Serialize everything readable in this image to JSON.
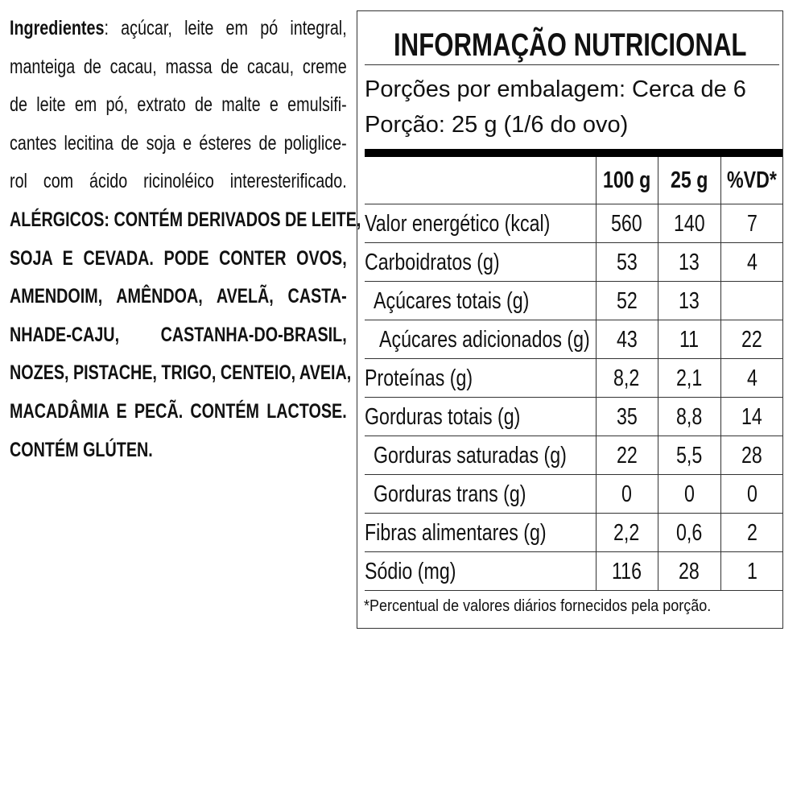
{
  "ingredients": {
    "label": "Ingredientes",
    "lines": [
      "açúcar, leite em pó integral,",
      "manteiga de cacau, massa de cacau, creme",
      "de leite em pó, extrato de malte e emulsifi-",
      "cantes lecitina de soja e ésteres de poliglice-",
      "rol com ácido ricinoléico interesterificado."
    ],
    "allergen_lines": [
      "ALÉRGICOS: CONTÉM DERIVADOS DE LEITE,",
      "SOJA E CEVADA. PODE CONTER OVOS,",
      "AMENDOIM, AMÊNDOA, AVELÃ, CASTA-",
      "NHADE-CAJU, CASTANHA-DO-BRASIL,",
      "NOZES, PISTACHE, TRIGO, CENTEIO, AVEIA,",
      "MACADÂMIA E PECÃ. CONTÉM LACTOSE.",
      "CONTÉM GLÚTEN."
    ]
  },
  "nutrition": {
    "title": "INFORMAÇÃO NUTRICIONAL",
    "servings_per_package": "Porções por embalagem: Cerca de 6",
    "serving_size": "Porção: 25 g (1/6 do ovo)",
    "columns": [
      "",
      "100 g",
      "25 g",
      "%VD*"
    ],
    "rows": [
      {
        "name": "Valor energético (kcal)",
        "v100": "560",
        "v25": "140",
        "vd": "7"
      },
      {
        "name": "Carboidratos (g)",
        "v100": "53",
        "v25": "13",
        "vd": "4"
      },
      {
        "name": "Açúcares totais (g)",
        "v100": "52",
        "v25": "13",
        "vd": ""
      },
      {
        "name": "Açúcares adicionados (g)",
        "v100": "43",
        "v25": "11",
        "vd": "22"
      },
      {
        "name": "Proteínas (g)",
        "v100": "8,2",
        "v25": "2,1",
        "vd": "4"
      },
      {
        "name": "Gorduras totais (g)",
        "v100": "35",
        "v25": "8,8",
        "vd": "14"
      },
      {
        "name": "Gorduras saturadas (g)",
        "v100": "22",
        "v25": "5,5",
        "vd": "28"
      },
      {
        "name": "Gorduras trans (g)",
        "v100": "0",
        "v25": "0",
        "vd": "0"
      },
      {
        "name": "Fibras alimentares (g)",
        "v100": "2,2",
        "v25": "0,6",
        "vd": "2"
      },
      {
        "name": "Sódio (mg)",
        "v100": "116",
        "v25": "28",
        "vd": "1"
      }
    ],
    "footnote": "*Percentual de valores diários fornecidos pela porção."
  }
}
